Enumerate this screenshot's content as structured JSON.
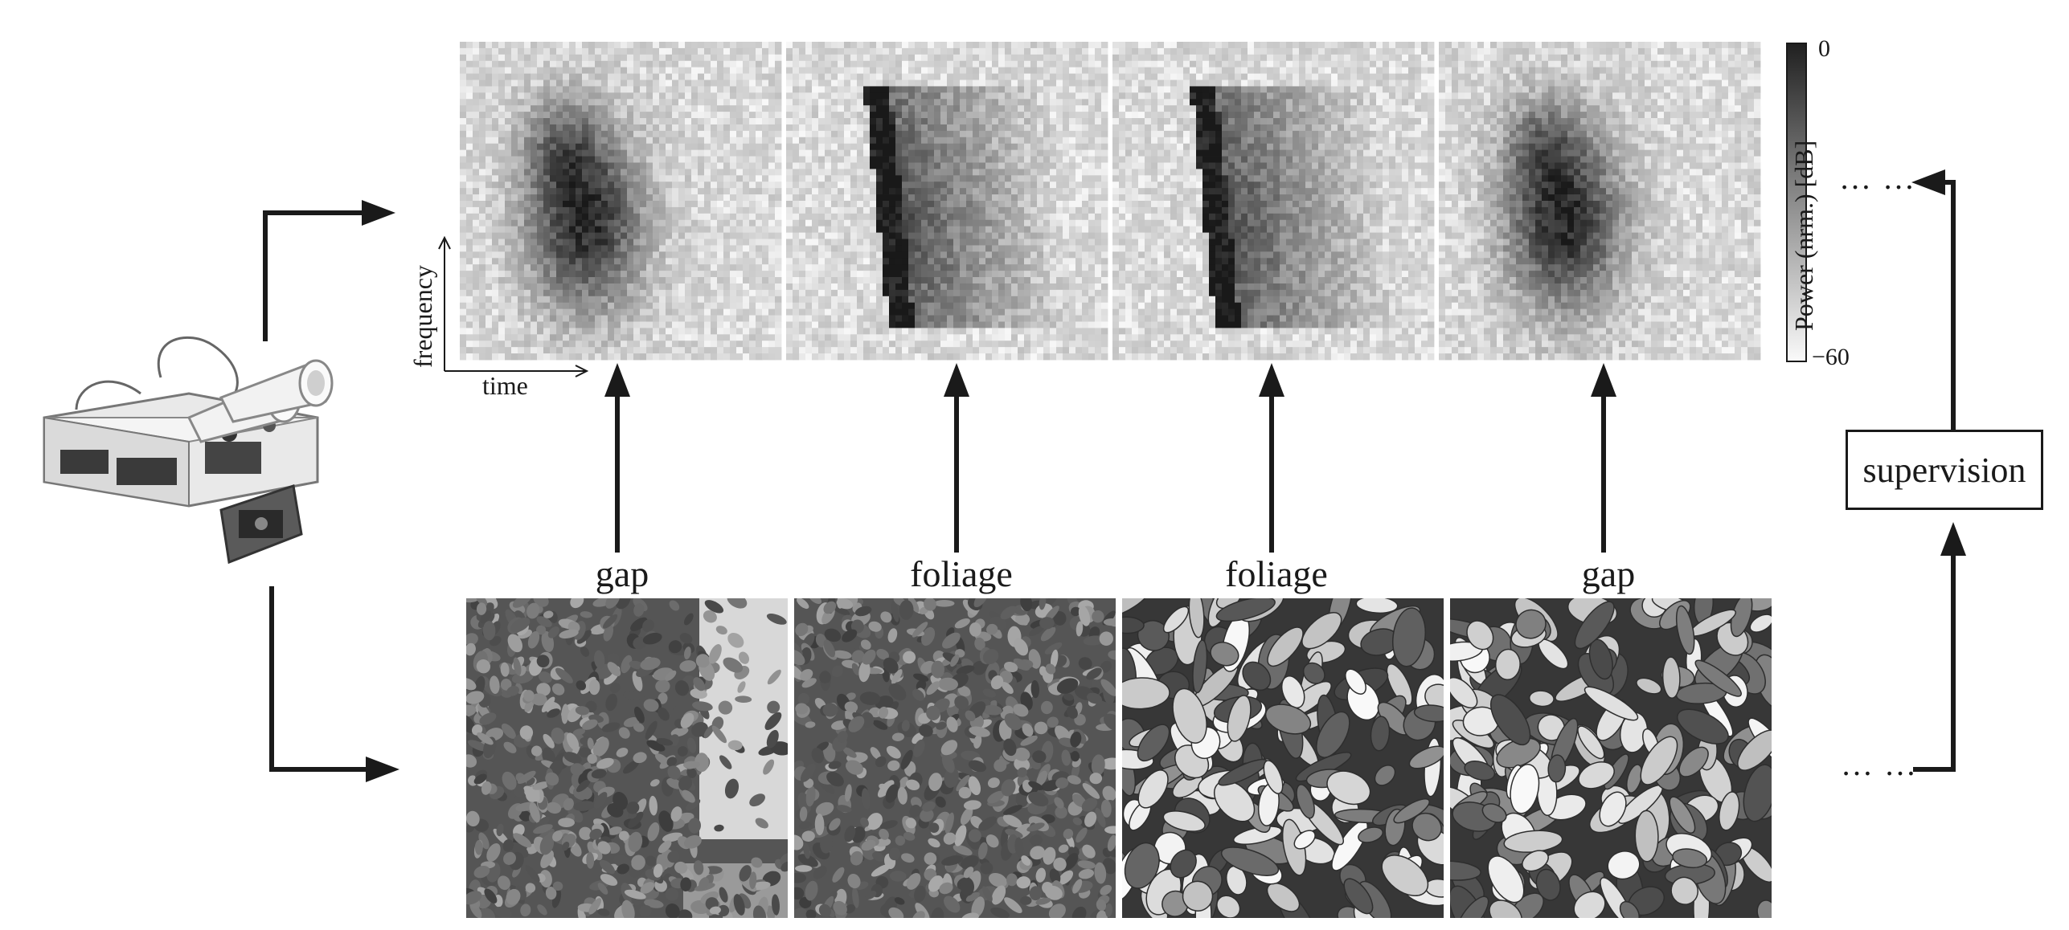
{
  "axes": {
    "x_label": "time",
    "y_label": "frequency"
  },
  "colorbar": {
    "title": "Power (nrm.) [dB]",
    "max_label": "0",
    "min_label": "−60",
    "max_value": 0,
    "min_value": -60
  },
  "panels": [
    {
      "class_label": "gap",
      "spectrogram_shape": "blob"
    },
    {
      "class_label": "foliage",
      "spectrogram_shape": "edge"
    },
    {
      "class_label": "foliage",
      "spectrogram_shape": "edge"
    },
    {
      "class_label": "gap",
      "spectrogram_shape": "blob"
    }
  ],
  "supervision_label": "supervision",
  "continuation_top": "… …",
  "continuation_bottom": "… …",
  "robot_icon": "sonar-robot-photo",
  "colors": {
    "ink": "#1a1a1a",
    "background": "#ffffff"
  }
}
